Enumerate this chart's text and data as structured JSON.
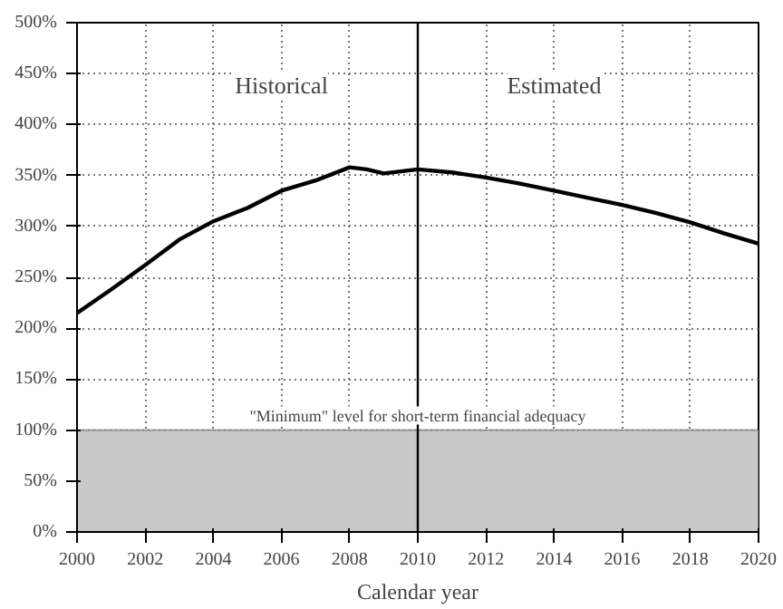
{
  "chart_data": {
    "type": "line",
    "xlabel": "Calendar year",
    "x": [
      2000,
      2001,
      2002,
      2003,
      2004,
      2005,
      2006,
      2007,
      2008,
      2008.5,
      2009,
      2010,
      2011,
      2012,
      2013,
      2014,
      2015,
      2016,
      2017,
      2018,
      2019,
      2020
    ],
    "series": [
      {
        "color": "#000000",
        "values": [
          215,
          238,
          262,
          287,
          305,
          318,
          335,
          345,
          358,
          356,
          352,
          356,
          353,
          348,
          342,
          335,
          328,
          321,
          313,
          304,
          293,
          283
        ]
      }
    ],
    "xlim": [
      2000,
      2020
    ],
    "xticks": [
      2000,
      2002,
      2004,
      2006,
      2008,
      2010,
      2012,
      2014,
      2016,
      2018,
      2020
    ],
    "ylim": [
      0,
      500
    ],
    "yticks": [
      {
        "value": 0,
        "label": "0%"
      },
      {
        "value": 50,
        "label": "50%"
      },
      {
        "value": 100,
        "label": "100%"
      },
      {
        "value": 150,
        "label": "150%"
      },
      {
        "value": 200,
        "label": "200%"
      },
      {
        "value": 250,
        "label": "250%"
      },
      {
        "value": 300,
        "label": "300%"
      },
      {
        "value": 350,
        "label": "350%"
      },
      {
        "value": 400,
        "label": "400%"
      },
      {
        "value": 450,
        "label": "450%"
      },
      {
        "value": 500,
        "label": "500%"
      }
    ],
    "grid": true,
    "marker": "none",
    "line_style": "solid",
    "ref_lines": [
      {
        "axis": "x",
        "value": 2010,
        "color": "#000000"
      }
    ],
    "bands": [
      {
        "axis": "y",
        "from": 0,
        "to": 100,
        "label": "\"Minimum\" level for short-term financial adequacy",
        "color": "#c8c8c8"
      }
    ],
    "annotations": [
      "Historical",
      "Estimated"
    ]
  }
}
